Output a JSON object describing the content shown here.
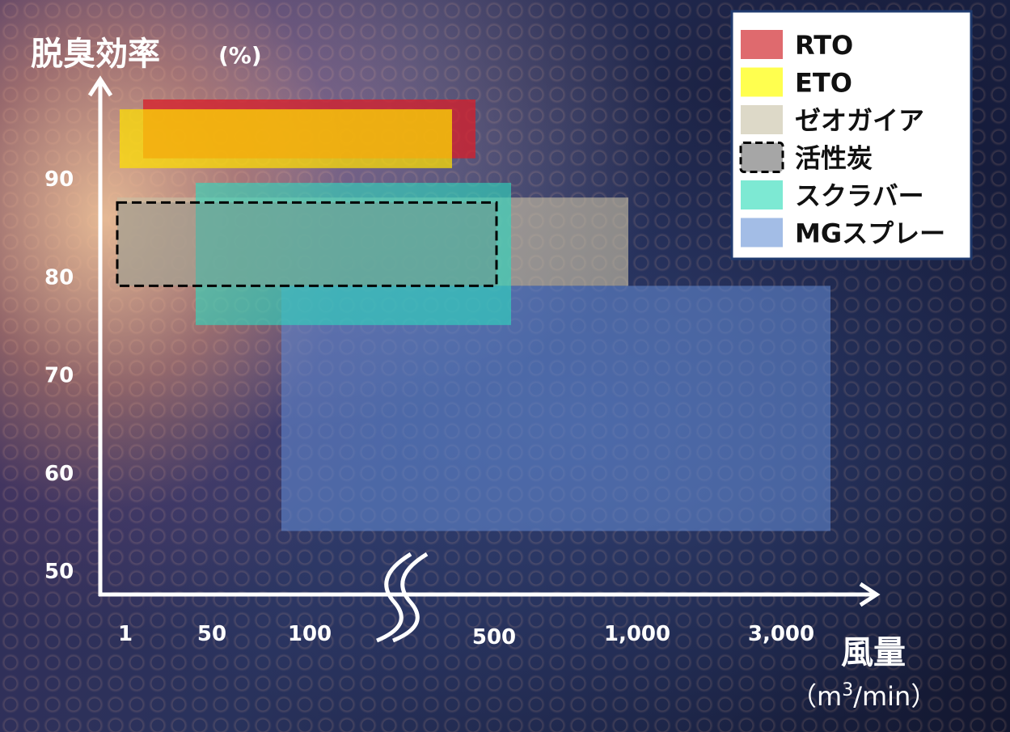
{
  "chart_data": {
    "type": "range-bar",
    "ylabel": "脱臭効率",
    "ylabel_unit": "(%)",
    "xlabel": "風量",
    "xlabel_unit_prefix": "（m",
    "xlabel_unit_sup": "3",
    "xlabel_unit_suffix": "/min）",
    "x_ticks": [
      "1",
      "50",
      "100",
      "500",
      "1,000",
      "3,000"
    ],
    "y_ticks": [
      50,
      60,
      70,
      80,
      90
    ],
    "x_axis_break": true,
    "legend_position": "top-right",
    "series": [
      {
        "name": "ZEOGAIA",
        "label": "ゼオガイア",
        "color": "#c9c0a5",
        "x_range": [
          "1",
          "1,000"
        ],
        "y_range": [
          79,
          88
        ]
      },
      {
        "name": "MGSPRAY",
        "label": "MGスプレー",
        "color": "#5f85cc",
        "x_range": [
          "100",
          "3,000"
        ],
        "y_range": [
          54,
          79
        ]
      },
      {
        "name": "SCRUBBER",
        "label": "スクラバー",
        "color": "#2fd8bf",
        "x_range": [
          "50",
          "500"
        ],
        "y_range": [
          75,
          89.5
        ]
      },
      {
        "name": "CARBON",
        "label": "活性炭",
        "color": "#7a7a7a",
        "x_range": [
          "1",
          "500"
        ],
        "y_range": [
          79,
          87.5
        ]
      },
      {
        "name": "RTO",
        "label": "RTO",
        "color": "#d81e2a",
        "x_range": [
          "1",
          "500"
        ],
        "y_range": [
          92,
          98
        ]
      },
      {
        "name": "ETO",
        "label": "ETO",
        "color": "#ffe000",
        "x_range": [
          "1",
          "500"
        ],
        "y_range": [
          91,
          97
        ]
      }
    ],
    "legend": [
      {
        "label": "RTO",
        "color": "#df6a6e"
      },
      {
        "label": "ETO",
        "color": "#ffff4f"
      },
      {
        "label": "ゼオガイア",
        "color": "#ddd9c8"
      },
      {
        "label": "活性炭",
        "color": "#a6a6a6",
        "dashed": true
      },
      {
        "label": "スクラバー",
        "color": "#7de9d3"
      },
      {
        "label": "MGスプレー",
        "color": "#a3bde6"
      }
    ]
  }
}
